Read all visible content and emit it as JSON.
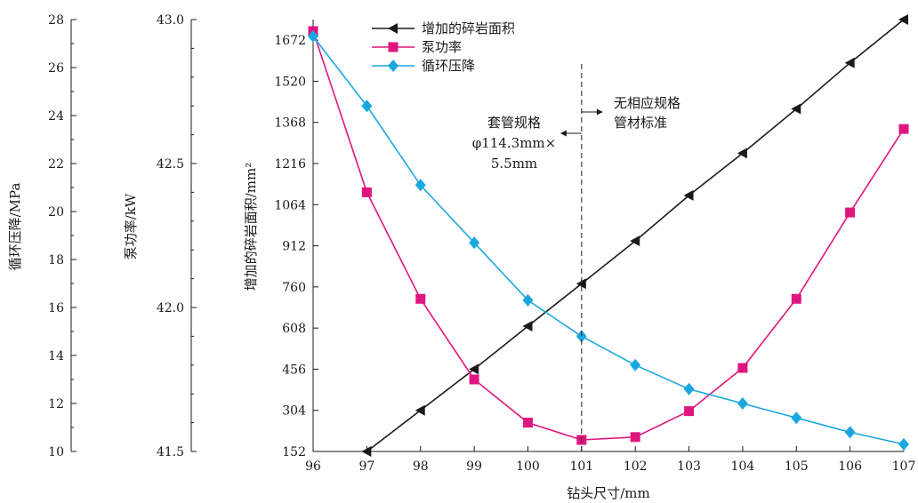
{
  "chart_data": {
    "type": "line",
    "x": [
      96,
      97,
      98,
      99,
      100,
      101,
      102,
      103,
      104,
      105,
      106,
      107
    ],
    "xlabel": "钻头尺寸/mm",
    "xlim": [
      96,
      107
    ],
    "axes": [
      {
        "id": "pressure",
        "label": "循环压降/MPa",
        "lim": [
          10,
          28
        ],
        "ticks": [
          "10",
          "12",
          "14",
          "16",
          "18",
          "20",
          "22",
          "24",
          "26",
          "28"
        ]
      },
      {
        "id": "power",
        "label": "泵功率/kW",
        "lim": [
          41.5,
          43.0
        ],
        "ticks": [
          "41.5",
          "42.0",
          "42.5",
          "43.0"
        ]
      },
      {
        "id": "area",
        "label": "增加的碎岩面积/mm²",
        "lim": [
          152,
          1748
        ],
        "ticks": [
          "152",
          "304",
          "456",
          "608",
          "760",
          "912",
          "1064",
          "1216",
          "1368",
          "1520",
          "1672"
        ]
      }
    ],
    "series": [
      {
        "name": "增加的碎岩面积",
        "axis": "area",
        "color": "#1a1a1a",
        "marker": "triangle-left",
        "values": [
          null,
          152,
          304,
          456,
          615,
          772,
          930,
          1098,
          1254,
          1418,
          1588,
          1748
        ]
      },
      {
        "name": "泵功率",
        "axis": "power",
        "color": "#e0157f",
        "marker": "square",
        "values": [
          42.96,
          42.4,
          42.03,
          41.75,
          41.6,
          41.54,
          41.55,
          41.64,
          41.79,
          42.03,
          42.33,
          42.62
        ]
      },
      {
        "name": "循环压降",
        "axis": "pressure",
        "color": "#1aa7e0",
        "marker": "diamond",
        "values": [
          27.3,
          24.4,
          21.1,
          18.7,
          16.3,
          14.8,
          13.6,
          12.6,
          12.0,
          11.4,
          10.8,
          10.3
        ]
      }
    ],
    "legend": "top-center",
    "annotations": {
      "casing_lines": [
        "套管规格",
        "φ114.3mm×",
        "5.5mm"
      ],
      "no_standard_lines": [
        "无相应规格",
        "管材标准"
      ],
      "vline_x": 101
    }
  }
}
